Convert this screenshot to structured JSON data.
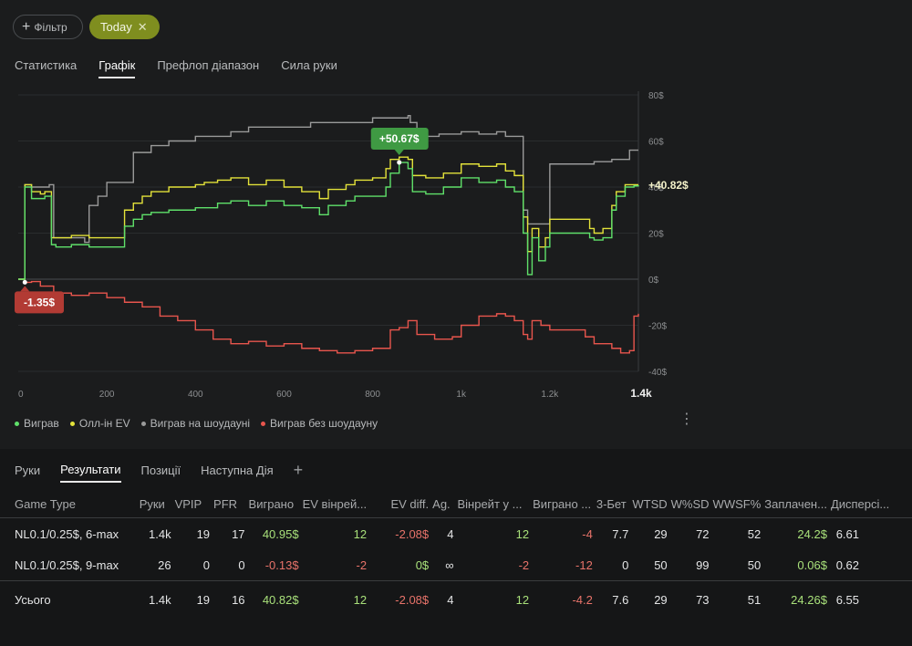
{
  "filter": {
    "label": "Фільтр"
  },
  "date_chip": {
    "label": "Today",
    "close": "✕"
  },
  "tabs": [
    "Статистика",
    "Графік",
    "Префлоп діапазон",
    "Сила руки"
  ],
  "chart_data": {
    "type": "line",
    "x_ticks": [
      "0",
      "200",
      "400",
      "600",
      "800",
      "1k",
      "1.2k",
      "1.4k"
    ],
    "y_ticks": [
      "80$",
      "60$",
      "40$",
      "20$",
      "0$",
      "-20$",
      "-40$"
    ],
    "xlim": [
      0,
      1400
    ],
    "ylim": [
      -40,
      80
    ],
    "annotations": {
      "max_label": "+50.67$",
      "min_label": "-1.35$",
      "end_label": "+40.82$"
    },
    "colors": {
      "won": "#5fe06a",
      "allin_ev": "#e3e23a",
      "showdown": "#9a9a9a",
      "non_showdown": "#e8554d"
    },
    "series": [
      {
        "name": "Виграв",
        "x": [
          0,
          15,
          30,
          50,
          60,
          75,
          85,
          120,
          160,
          240,
          260,
          280,
          300,
          340,
          375,
          400,
          420,
          450,
          480,
          520,
          560,
          600,
          640,
          680,
          700,
          740,
          760,
          800,
          830,
          840,
          860,
          880,
          890,
          920,
          960,
          1000,
          1040,
          1080,
          1100,
          1120,
          1140,
          1150,
          1160,
          1175,
          1190,
          1200,
          1220,
          1260,
          1290,
          1300,
          1320,
          1340,
          1350,
          1370,
          1390,
          1400
        ],
        "y": [
          0,
          40,
          35,
          35,
          36,
          15,
          14,
          15,
          14,
          23,
          26,
          28,
          29,
          30,
          30,
          31,
          31,
          33,
          34,
          32,
          34,
          32,
          31,
          28,
          32,
          34,
          36,
          36,
          40,
          46,
          50.67,
          48,
          38,
          37,
          40,
          44,
          42,
          43,
          40,
          38,
          20,
          2,
          18,
          8,
          14,
          20,
          20,
          20,
          18,
          17,
          18,
          30,
          36,
          40,
          40.5,
          40.82
        ]
      },
      {
        "name": "Олл-ін EV",
        "x": [
          0,
          15,
          30,
          50,
          60,
          75,
          85,
          120,
          160,
          240,
          260,
          280,
          300,
          340,
          375,
          400,
          420,
          450,
          480,
          520,
          560,
          600,
          640,
          680,
          700,
          740,
          760,
          800,
          830,
          840,
          860,
          880,
          890,
          920,
          960,
          1000,
          1040,
          1080,
          1100,
          1120,
          1140,
          1150,
          1160,
          1175,
          1190,
          1200,
          1220,
          1260,
          1290,
          1300,
          1320,
          1340,
          1350,
          1370,
          1390,
          1400
        ],
        "y": [
          0,
          41,
          38,
          37,
          38,
          18,
          18,
          19,
          18,
          30,
          33,
          36,
          38,
          40,
          40,
          41,
          42,
          43,
          44,
          41,
          43,
          40,
          38,
          35,
          39,
          41,
          43,
          44,
          48,
          52,
          53,
          52,
          45,
          44,
          46,
          50,
          49,
          50,
          47,
          45,
          27,
          12,
          22,
          14,
          18,
          26,
          26,
          26,
          22,
          20,
          22,
          32,
          38,
          41,
          41,
          41
        ]
      },
      {
        "name": "Виграв на шоудауні",
        "x": [
          0,
          15,
          30,
          60,
          70,
          80,
          140,
          150,
          160,
          180,
          200,
          260,
          300,
          340,
          360,
          400,
          440,
          480,
          520,
          560,
          600,
          660,
          700,
          760,
          800,
          840,
          860,
          880,
          885,
          900,
          950,
          1000,
          1040,
          1080,
          1100,
          1140,
          1150,
          1170,
          1200,
          1240,
          1280,
          1300,
          1340,
          1360,
          1380,
          1400
        ],
        "y": [
          0,
          41,
          40,
          40,
          41,
          18,
          18,
          16,
          32,
          36,
          42,
          55,
          58,
          60,
          60,
          62,
          62,
          64,
          66,
          66,
          66,
          68,
          68,
          68,
          70,
          70,
          70,
          71,
          68,
          62,
          63,
          64,
          63,
          64,
          62,
          30,
          24,
          24,
          50,
          50,
          50,
          51,
          52,
          52,
          56,
          56
        ]
      },
      {
        "name": "Виграв без шоудауну",
        "x": [
          0,
          15,
          30,
          50,
          80,
          120,
          160,
          200,
          240,
          280,
          320,
          360,
          400,
          440,
          480,
          520,
          560,
          600,
          640,
          680,
          720,
          760,
          800,
          840,
          860,
          880,
          900,
          940,
          980,
          1000,
          1040,
          1080,
          1100,
          1120,
          1140,
          1150,
          1160,
          1180,
          1200,
          1240,
          1280,
          1300,
          1340,
          1360,
          1380,
          1390,
          1400
        ],
        "y": [
          0,
          -1.35,
          -1,
          -3,
          -6,
          -7,
          -6,
          -8,
          -10,
          -12,
          -16,
          -18,
          -22,
          -26,
          -28,
          -27,
          -29,
          -28,
          -30,
          -31,
          -32,
          -31,
          -30,
          -22,
          -21,
          -18,
          -24,
          -26,
          -25,
          -20,
          -16,
          -15,
          -16,
          -18,
          -24,
          -26,
          -18,
          -20,
          -22,
          -22,
          -25,
          -28,
          -30,
          -32,
          -31,
          -16,
          -15
        ]
      }
    ]
  },
  "legend": [
    "Виграв",
    "Олл-ін EV",
    "Виграв на шоудауні",
    "Виграв без шоудауну"
  ],
  "kebab": "⋮",
  "bottom_tabs": [
    "Руки",
    "Результати",
    "Позиції",
    "Наступна Дія"
  ],
  "add_tab": "+",
  "table": {
    "headers": [
      "Game Type",
      "Руки",
      "VPIP",
      "PFR",
      "Виграно",
      "EV вінрей...",
      "EV diff.",
      "Ag.",
      "Вінрейт у ...",
      "Виграно ...",
      "3-Бет",
      "WTSD",
      "W%SD",
      "WWSF%",
      "Заплачен...",
      "Дисперсі..."
    ],
    "rows": [
      [
        "NL0.1/0.25$, 6-max",
        "1.4k",
        "19",
        "17",
        "40.95$",
        "12",
        "-2.08$",
        "4",
        "12",
        "-4",
        "7.7",
        "29",
        "72",
        "52",
        "24.2$",
        "6.61"
      ],
      [
        "NL0.1/0.25$, 9-max",
        "26",
        "0",
        "0",
        "-0.13$",
        "-2",
        "0$",
        "∞",
        "-2",
        "-12",
        "0",
        "50",
        "99",
        "50",
        "0.06$",
        "0.62"
      ]
    ],
    "total": [
      "Усього",
      "1.4k",
      "19",
      "16",
      "40.82$",
      "12",
      "-2.08$",
      "4",
      "12",
      "-4.2",
      "7.6",
      "29",
      "73",
      "51",
      "24.26$",
      "6.55"
    ]
  }
}
